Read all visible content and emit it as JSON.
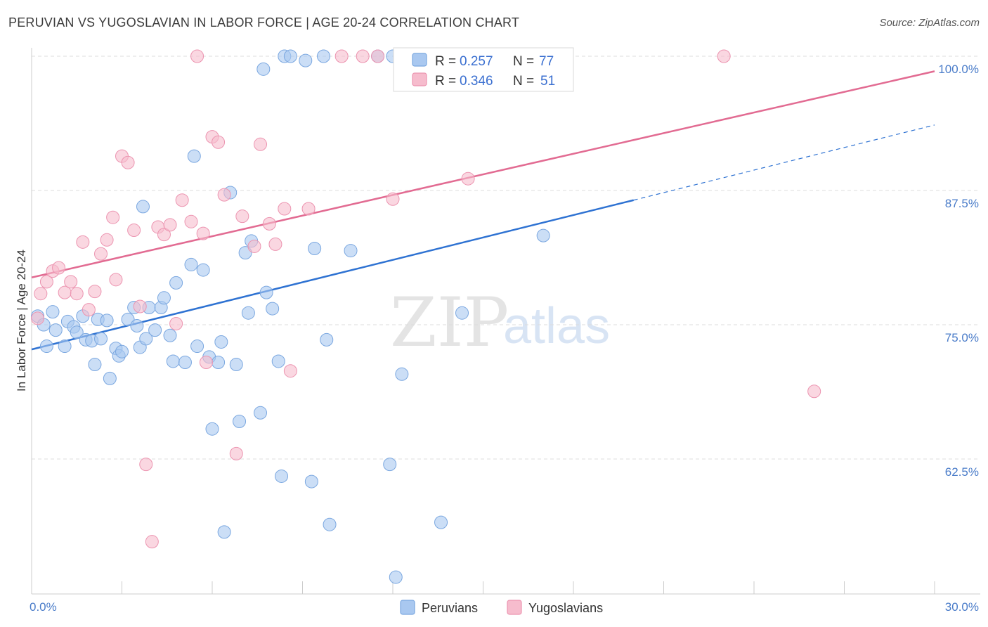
{
  "header": {
    "title": "PERUVIAN VS YUGOSLAVIAN IN LABOR FORCE | AGE 20-24 CORRELATION CHART",
    "source": "Source: ZipAtlas.com"
  },
  "watermark": {
    "zip": "ZIP",
    "atlas": "atlas"
  },
  "legend": {
    "rows": [
      {
        "r_label": "R = ",
        "r_value": "0.257",
        "n_label": "N = ",
        "n_value": "77"
      },
      {
        "r_label": "R = ",
        "r_value": "0.346",
        "n_label": "N = ",
        "n_value": "51"
      }
    ]
  },
  "colors": {
    "peruvians_fill": "#a9c8f0",
    "peruvians_stroke": "#7aa7e0",
    "peruvians_line": "#2e72d2",
    "yugoslavians_fill": "#f6bccd",
    "yugoslavians_stroke": "#ec94b0",
    "yugoslavians_line": "#e26b92",
    "tick_label": "#4a7cc9",
    "grid": "#dddddd"
  },
  "chart_data": {
    "type": "scatter",
    "title": "PERUVIAN VS YUGOSLAVIAN IN LABOR FORCE | AGE 20-24 CORRELATION CHART",
    "xlabel": "",
    "ylabel": "In Labor Force | Age 20-24",
    "xlim": [
      0,
      30
    ],
    "ylim": [
      50,
      101
    ],
    "x_tick_labels": [
      "0.0%",
      "30.0%"
    ],
    "y_ticks": [
      62.5,
      75.0,
      87.5,
      100.0
    ],
    "y_tick_labels": [
      "62.5%",
      "75.0%",
      "87.5%",
      "100.0%"
    ],
    "grid": true,
    "legend_position": "top-center",
    "series": [
      {
        "name": "Peruvians",
        "r": 0.257,
        "n": 77,
        "trend": {
          "x0": 0,
          "y0": 72.7,
          "x1": 20.0,
          "y1": 86.6,
          "dash_x1": 30.0,
          "dash_y1": 93.6
        },
        "points": [
          [
            0.2,
            75.8
          ],
          [
            0.4,
            75.0
          ],
          [
            0.5,
            73.0
          ],
          [
            0.7,
            76.2
          ],
          [
            0.8,
            74.5
          ],
          [
            1.1,
            73.0
          ],
          [
            1.2,
            75.3
          ],
          [
            1.4,
            74.8
          ],
          [
            1.5,
            74.3
          ],
          [
            1.7,
            75.8
          ],
          [
            1.8,
            73.6
          ],
          [
            2.0,
            73.5
          ],
          [
            2.1,
            71.3
          ],
          [
            2.2,
            75.5
          ],
          [
            2.3,
            73.7
          ],
          [
            2.5,
            75.4
          ],
          [
            2.6,
            70.0
          ],
          [
            2.8,
            72.8
          ],
          [
            2.9,
            72.1
          ],
          [
            3.0,
            72.5
          ],
          [
            3.2,
            75.5
          ],
          [
            3.4,
            76.6
          ],
          [
            3.5,
            74.9
          ],
          [
            3.6,
            72.9
          ],
          [
            3.7,
            86.0
          ],
          [
            3.8,
            73.7
          ],
          [
            3.9,
            76.6
          ],
          [
            4.1,
            74.5
          ],
          [
            4.3,
            76.6
          ],
          [
            4.4,
            77.5
          ],
          [
            4.6,
            74.0
          ],
          [
            4.7,
            71.6
          ],
          [
            4.8,
            78.9
          ],
          [
            5.1,
            71.5
          ],
          [
            5.3,
            80.6
          ],
          [
            5.4,
            90.7
          ],
          [
            5.5,
            73.0
          ],
          [
            5.7,
            80.1
          ],
          [
            5.9,
            72.0
          ],
          [
            6.0,
            65.3
          ],
          [
            6.2,
            71.5
          ],
          [
            6.3,
            73.4
          ],
          [
            6.4,
            55.7
          ],
          [
            6.6,
            87.3
          ],
          [
            6.8,
            71.3
          ],
          [
            6.9,
            66.0
          ],
          [
            7.1,
            81.7
          ],
          [
            7.2,
            76.1
          ],
          [
            7.3,
            82.8
          ],
          [
            7.6,
            66.8
          ],
          [
            7.7,
            98.8
          ],
          [
            7.8,
            78.0
          ],
          [
            8.0,
            76.5
          ],
          [
            8.2,
            71.6
          ],
          [
            8.3,
            60.9
          ],
          [
            8.4,
            100.0
          ],
          [
            8.6,
            100.0
          ],
          [
            9.1,
            99.6
          ],
          [
            9.3,
            60.4
          ],
          [
            9.4,
            82.1
          ],
          [
            9.7,
            100.0
          ],
          [
            9.8,
            73.6
          ],
          [
            9.9,
            56.4
          ],
          [
            10.6,
            81.9
          ],
          [
            11.5,
            100.0
          ],
          [
            11.9,
            62.0
          ],
          [
            12.0,
            100.0
          ],
          [
            12.1,
            51.5
          ],
          [
            12.3,
            70.4
          ],
          [
            13.6,
            56.6
          ],
          [
            14.0,
            100.0
          ],
          [
            14.3,
            76.1
          ],
          [
            15.0,
            100.0
          ],
          [
            16.0,
            100.0
          ],
          [
            17.0,
            100.0
          ],
          [
            16.5,
            100.0
          ],
          [
            17.0,
            83.3
          ]
        ]
      },
      {
        "name": "Yugoslavians",
        "r": 0.346,
        "n": 51,
        "trend": {
          "x0": 0,
          "y0": 79.4,
          "x1": 30.0,
          "y1": 98.6
        },
        "points": [
          [
            0.2,
            75.6
          ],
          [
            0.3,
            77.9
          ],
          [
            0.5,
            79.0
          ],
          [
            0.7,
            80.0
          ],
          [
            0.9,
            80.3
          ],
          [
            1.1,
            78.0
          ],
          [
            1.3,
            79.0
          ],
          [
            1.5,
            77.9
          ],
          [
            1.7,
            82.7
          ],
          [
            1.9,
            76.4
          ],
          [
            2.1,
            78.1
          ],
          [
            2.3,
            81.6
          ],
          [
            2.5,
            82.9
          ],
          [
            2.7,
            85.0
          ],
          [
            2.8,
            79.2
          ],
          [
            3.0,
            90.7
          ],
          [
            3.2,
            90.1
          ],
          [
            3.4,
            83.8
          ],
          [
            3.6,
            76.7
          ],
          [
            3.8,
            62.0
          ],
          [
            4.0,
            54.8
          ],
          [
            4.2,
            84.1
          ],
          [
            4.4,
            83.4
          ],
          [
            4.6,
            84.3
          ],
          [
            4.8,
            75.1
          ],
          [
            5.0,
            86.6
          ],
          [
            5.3,
            84.6
          ],
          [
            5.7,
            83.5
          ],
          [
            5.8,
            71.5
          ],
          [
            6.0,
            92.5
          ],
          [
            6.2,
            92.0
          ],
          [
            6.4,
            87.1
          ],
          [
            6.8,
            63.0
          ],
          [
            7.0,
            85.1
          ],
          [
            7.4,
            82.3
          ],
          [
            7.6,
            91.8
          ],
          [
            7.9,
            84.4
          ],
          [
            8.1,
            82.5
          ],
          [
            8.4,
            85.8
          ],
          [
            8.6,
            70.7
          ],
          [
            9.2,
            85.8
          ],
          [
            10.3,
            100.0
          ],
          [
            11.0,
            100.0
          ],
          [
            11.5,
            100.0
          ],
          [
            12.0,
            86.7
          ],
          [
            14.5,
            88.6
          ],
          [
            15.0,
            100.0
          ],
          [
            5.5,
            100.0
          ],
          [
            15.5,
            100.0
          ],
          [
            23.0,
            100.0
          ],
          [
            26.0,
            68.8
          ]
        ]
      }
    ]
  }
}
